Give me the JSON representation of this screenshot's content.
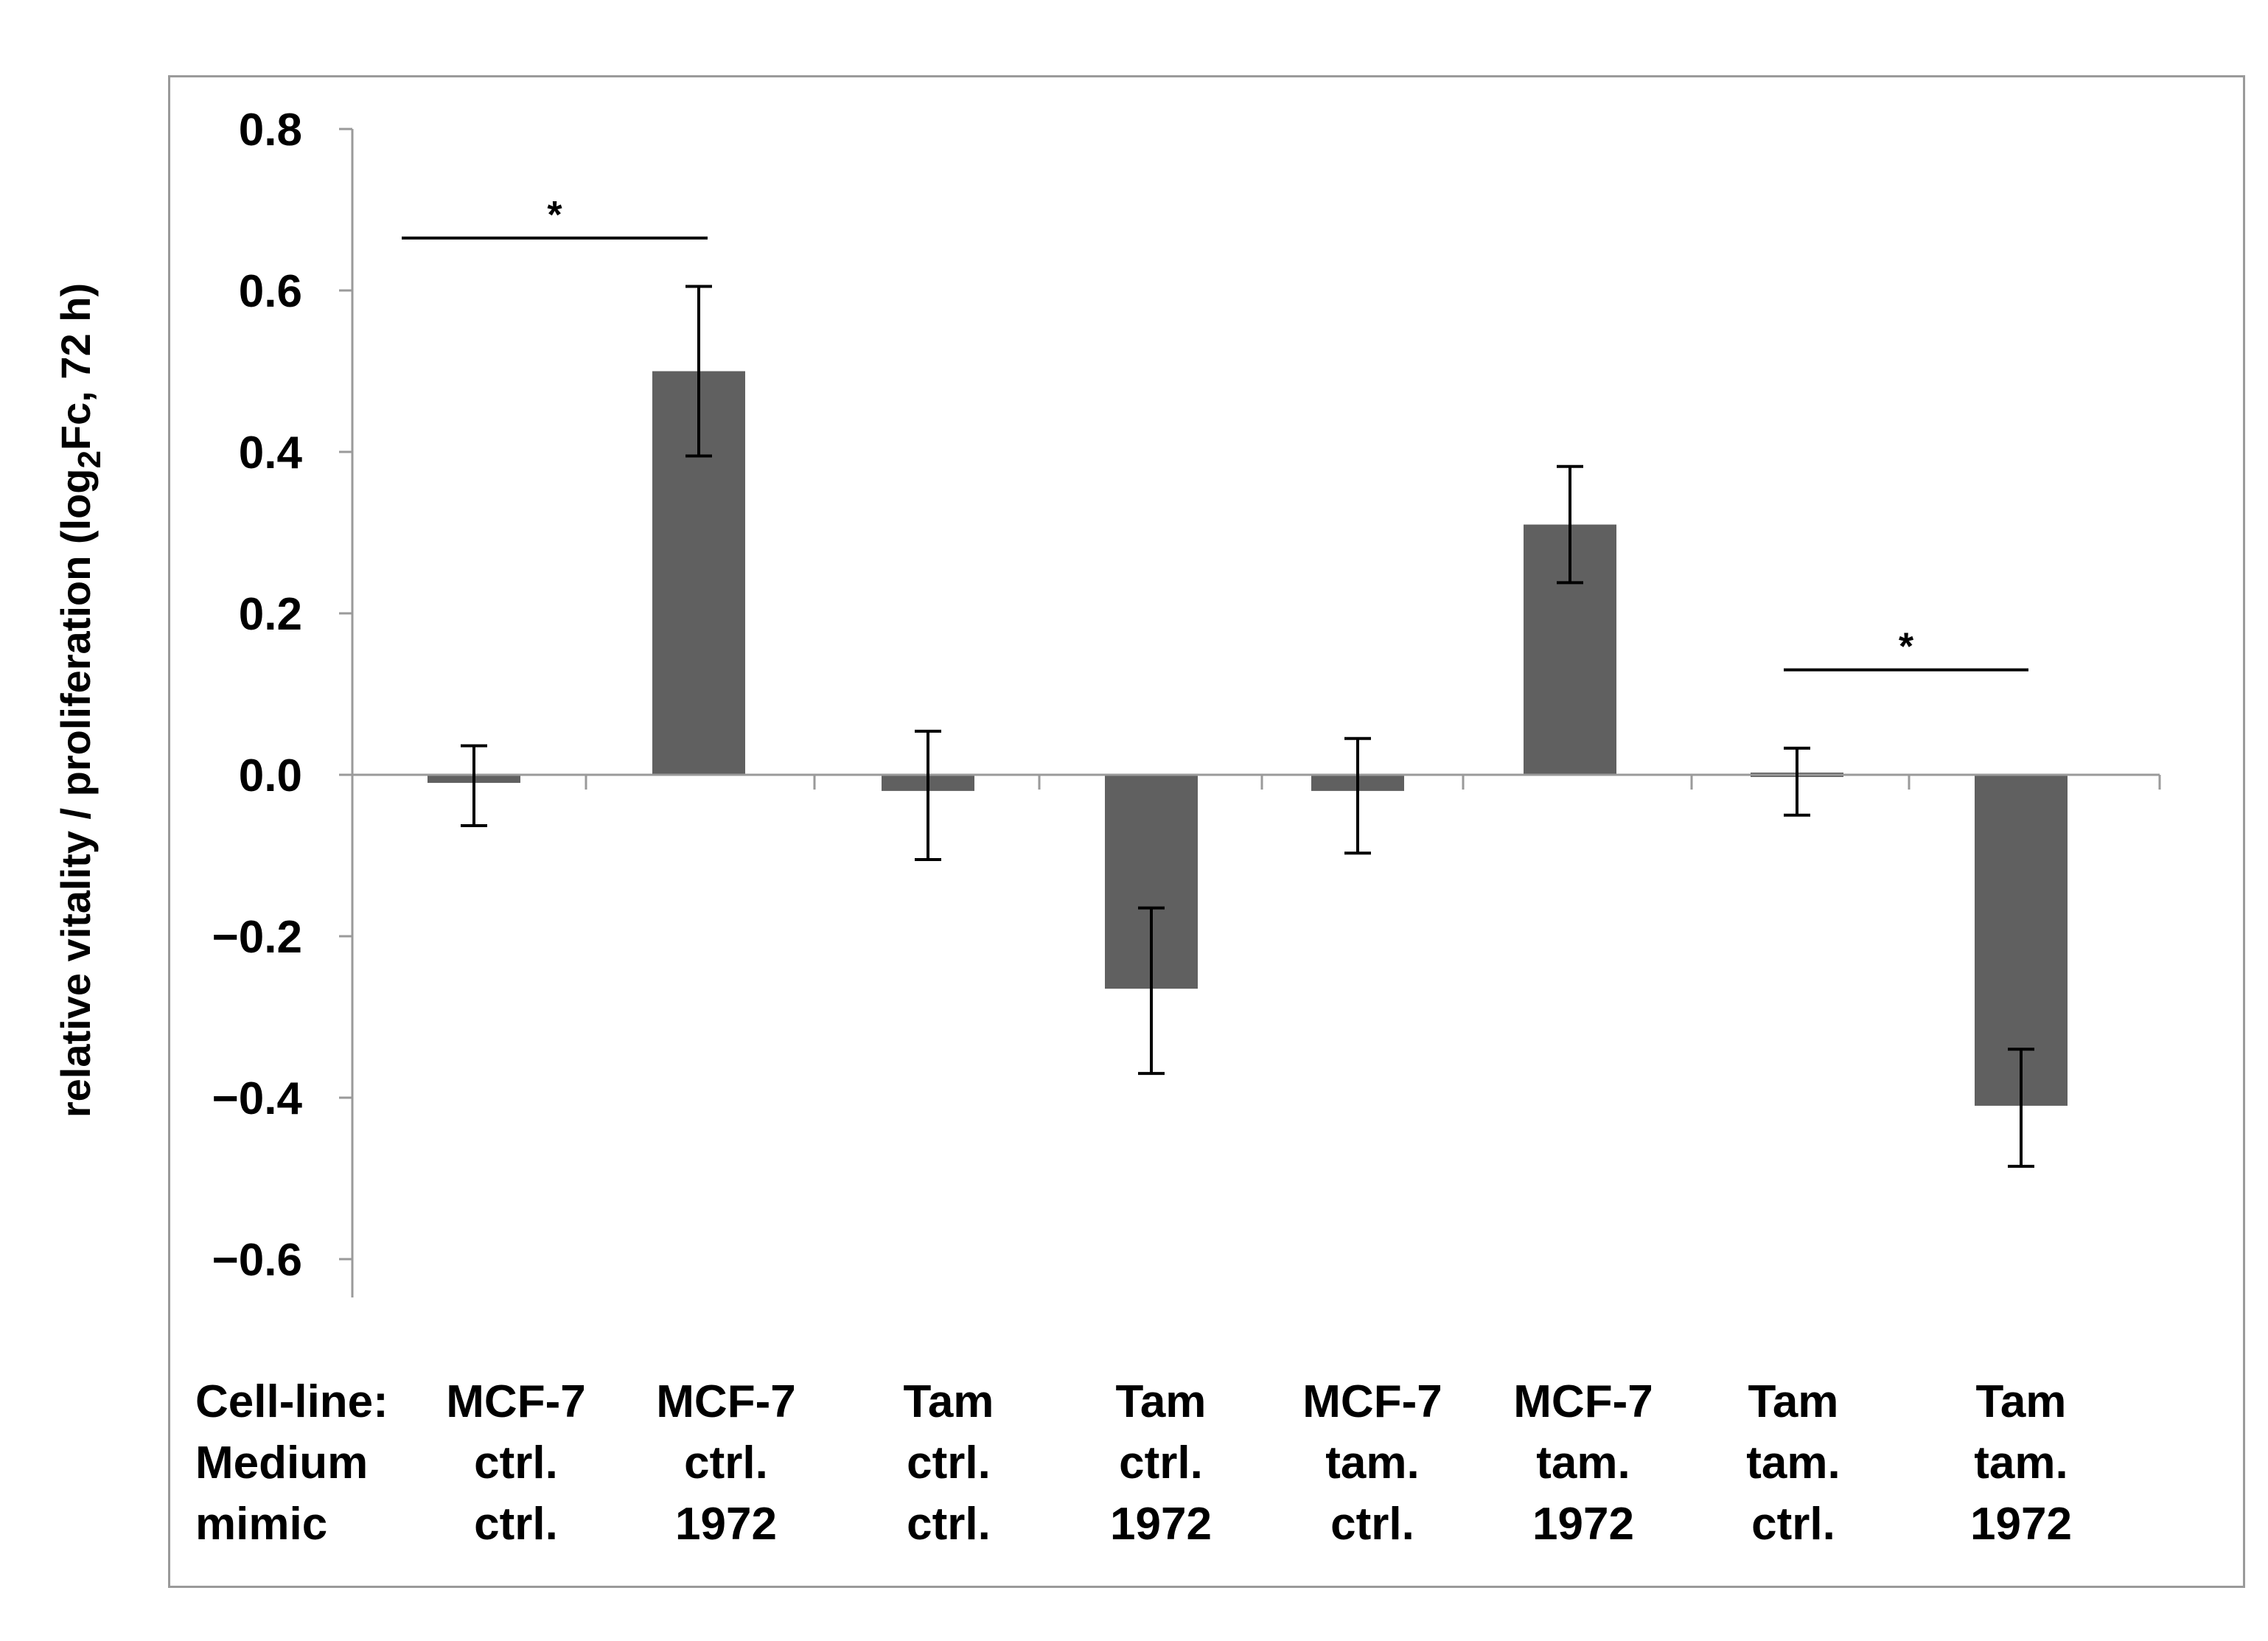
{
  "chart_data": {
    "type": "bar",
    "ylabel_main": "relative vitality / proliferation (log",
    "ylabel_sub": "2",
    "ylabel_rest": "Fc, 72 h)",
    "ylim": [
      -0.65,
      0.8
    ],
    "yticks": [
      0.8,
      0.6,
      0.4,
      0.2,
      0.0,
      -0.2,
      -0.4,
      -0.6
    ],
    "ytick_labels": [
      "0.8",
      "0.6",
      "0.4",
      "0.2",
      "0.0",
      "−0.2",
      "−0.4",
      "−0.6"
    ],
    "row_labels": [
      "Cell-line:",
      "Medium",
      "mimic"
    ],
    "categories": [
      {
        "cell_line": "MCF-7",
        "medium": "ctrl.",
        "mimic": "ctrl."
      },
      {
        "cell_line": "MCF-7",
        "medium": "ctrl.",
        "mimic": "1972"
      },
      {
        "cell_line": "Tam",
        "medium": "ctrl.",
        "mimic": "ctrl."
      },
      {
        "cell_line": "Tam",
        "medium": "ctrl.",
        "mimic": "1972"
      },
      {
        "cell_line": "MCF-7",
        "medium": "tam.",
        "mimic": "ctrl."
      },
      {
        "cell_line": "MCF-7",
        "medium": "tam.",
        "mimic": "1972"
      },
      {
        "cell_line": "Tam",
        "medium": "tam.",
        "mimic": "ctrl."
      },
      {
        "cell_line": "Tam",
        "medium": "tam.",
        "mimic": "1972"
      }
    ],
    "values": [
      -0.01,
      0.5,
      -0.02,
      -0.265,
      -0.02,
      0.31,
      -0.005,
      -0.41
    ],
    "err_low": [
      -0.063,
      0.395,
      -0.105,
      -0.37,
      -0.097,
      0.238,
      -0.05,
      -0.485
    ],
    "err_high": [
      0.036,
      0.605,
      0.054,
      -0.165,
      0.045,
      0.382,
      0.033,
      -0.34
    ],
    "significance": [
      {
        "from": 0,
        "to": 1,
        "y": 0.665,
        "label": "*"
      },
      {
        "from": 6,
        "to": 7,
        "y": 0.13,
        "label": "*"
      }
    ],
    "bar_color": "#606060"
  }
}
